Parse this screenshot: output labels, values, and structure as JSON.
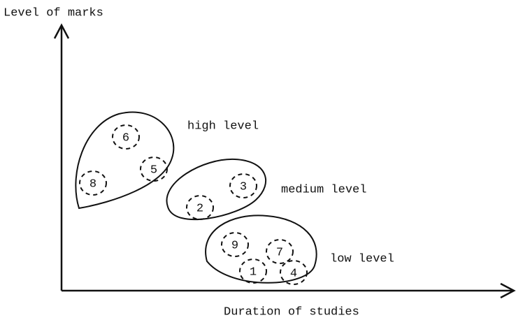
{
  "axes": {
    "y_label": "Level of marks",
    "x_label": "Duration of studies"
  },
  "groups": [
    {
      "label": "high level",
      "members": [
        "6",
        "5",
        "8"
      ]
    },
    {
      "label": "medium level",
      "members": [
        "3",
        "2"
      ]
    },
    {
      "label": "low level",
      "members": [
        "9",
        "7",
        "1",
        "4"
      ]
    }
  ]
}
